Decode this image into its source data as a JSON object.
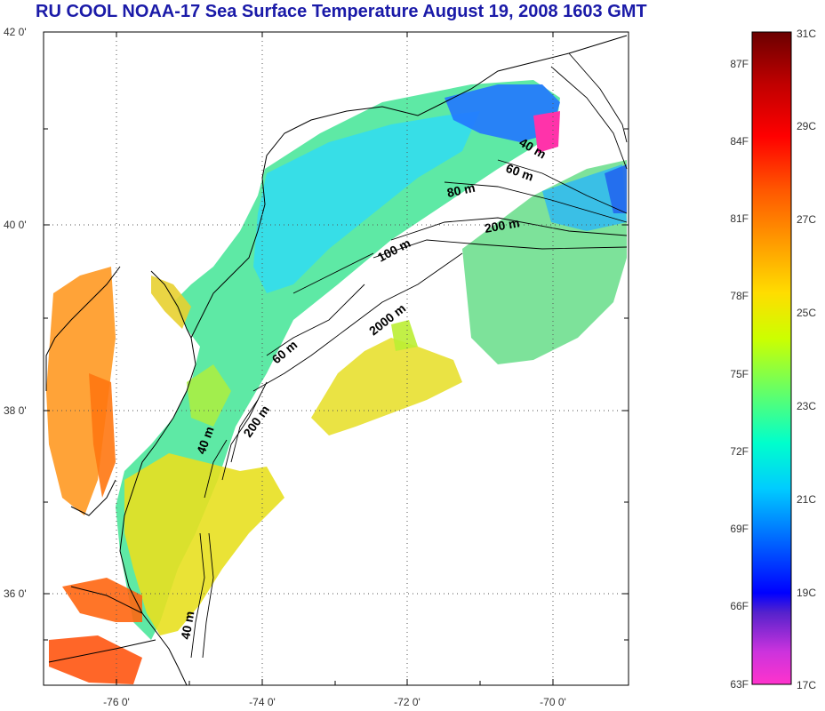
{
  "title": "RU COOL  NOAA-17 Sea Surface Temperature August 19, 2008 1603 GMT",
  "map": {
    "lat_labels": [
      "42 0'",
      "40 0'",
      "38 0'",
      "36 0'"
    ],
    "lon_labels": [
      "-76 0'",
      "-74 0'",
      "-72 0'",
      "-70 0'"
    ],
    "contour_labels": [
      "40 m",
      "60 m",
      "80 m",
      "200 m",
      "100 m",
      "2000 m",
      "60 m",
      "200 m",
      "40 m",
      "40 m"
    ]
  },
  "colorbar": {
    "fahrenheit_labels": [
      "87F",
      "84F",
      "81F",
      "78F",
      "75F",
      "72F",
      "69F",
      "66F",
      "63F"
    ],
    "celsius_labels": [
      "31C",
      "29C",
      "27C",
      "25C",
      "23C",
      "21C",
      "19C",
      "17C"
    ],
    "colors": [
      "#7a0000",
      "#c80000",
      "#ff0000",
      "#ff6600",
      "#ffaa00",
      "#ffee00",
      "#aaff33",
      "#33ffcc",
      "#00ddff",
      "#0088ff",
      "#0000ff",
      "#8833cc",
      "#ff33cc"
    ]
  }
}
